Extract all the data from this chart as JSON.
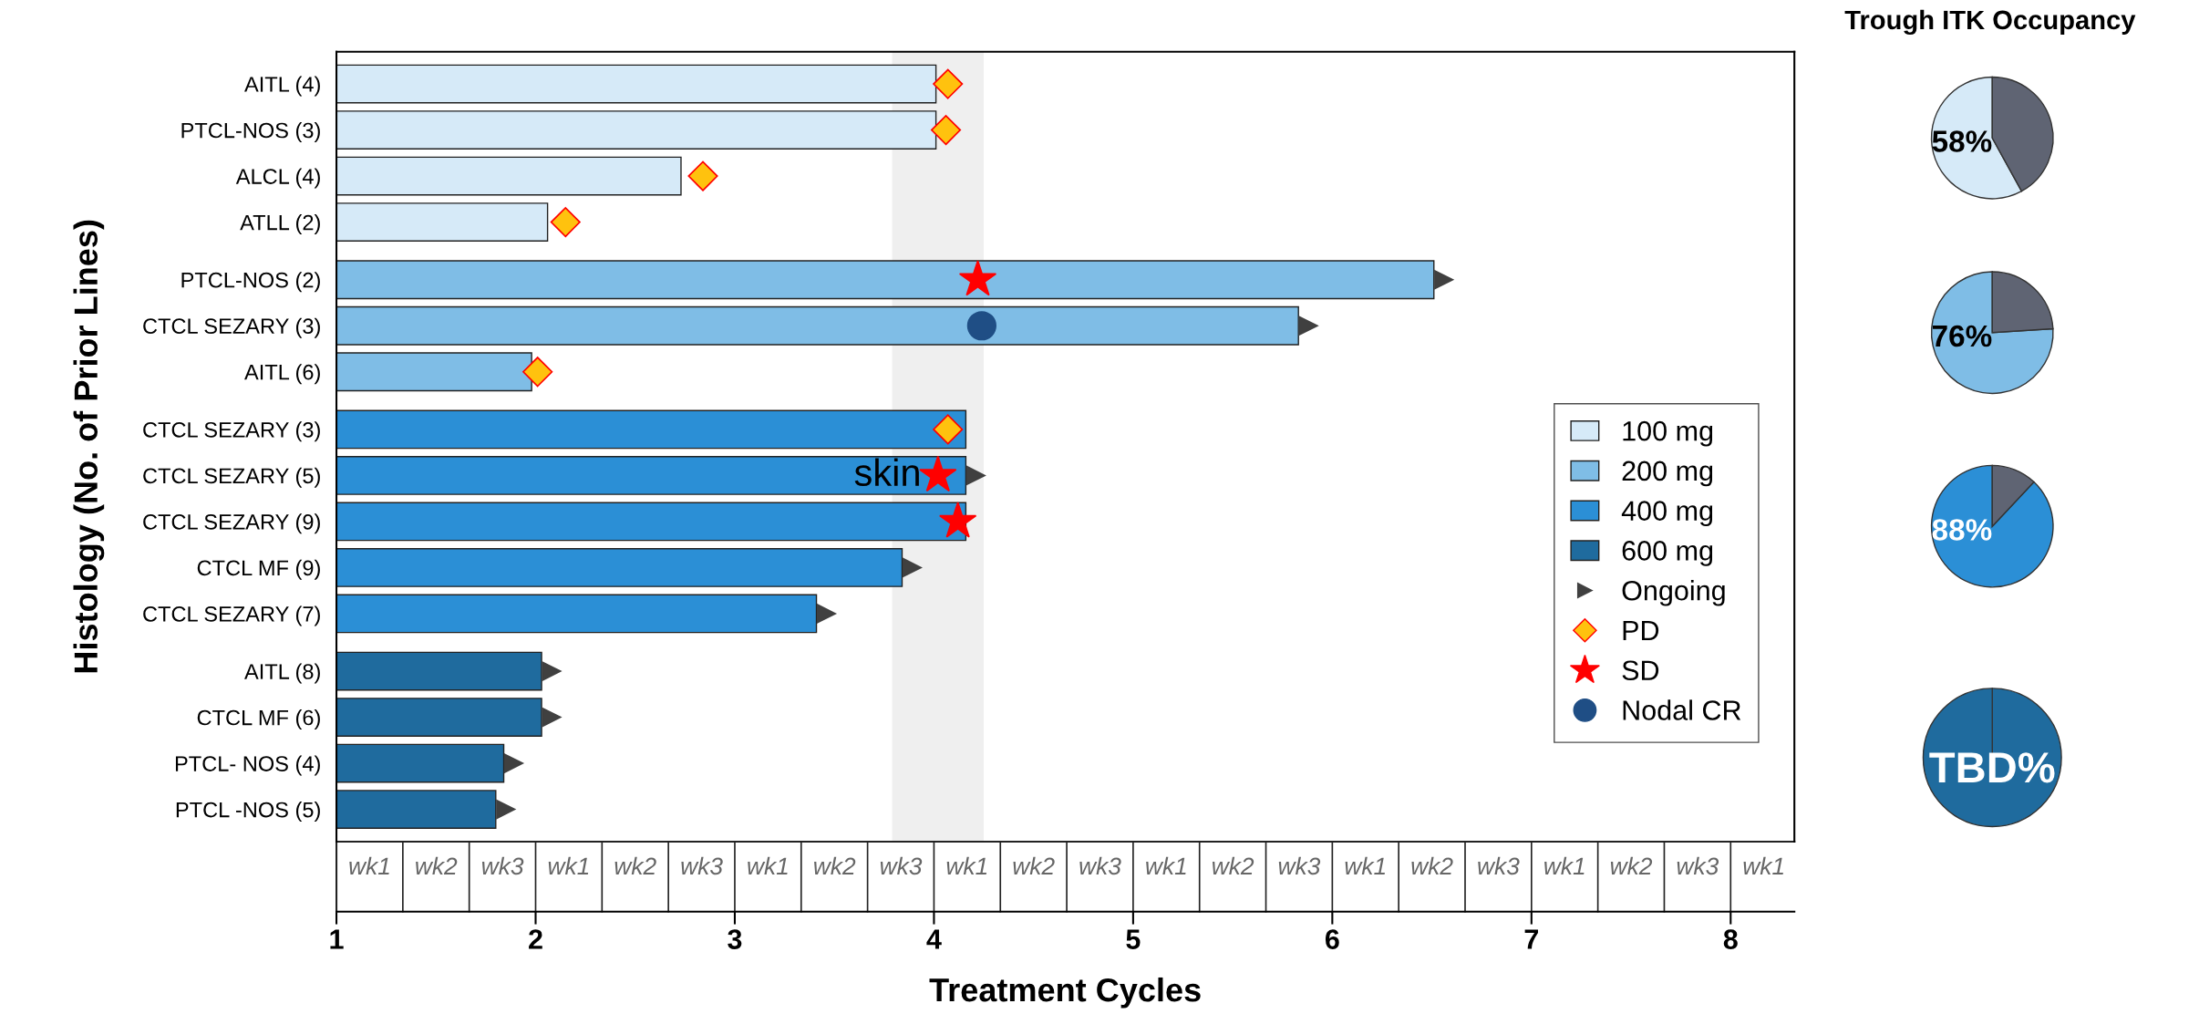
{
  "chart_data": [
    {
      "type": "bar",
      "orientation": "horizontal",
      "xlabel": "Treatment Cycles",
      "ylabel": "Histology (No. of Prior Lines)",
      "categories": [
        "AITL (4)",
        "PTCL-NOS (3)",
        "ALCL (4)",
        "ATLL (2)",
        "PTCL-NOS (2)",
        "CTCL SEZARY (3)",
        "AITL (6)",
        "CTCL SEZARY (3)",
        "CTCL SEZARY (5)",
        "CTCL SEZARY (9)",
        "CTCL MF (9)",
        "CTCL SEZARY (7)",
        "AITL (8)",
        "CTCL MF (6)",
        "PTCL- NOS (4)",
        "PTCL -NOS (5)"
      ],
      "series": [
        {
          "name": "100 mg",
          "color": "#d6eaf8",
          "values": [
            4.01,
            4.01,
            2.73,
            2.06,
            null,
            null,
            null,
            null,
            null,
            null,
            null,
            null,
            null,
            null,
            null,
            null
          ]
        },
        {
          "name": "200 mg",
          "color": "#7fbde6",
          "values": [
            null,
            null,
            null,
            null,
            6.51,
            5.83,
            1.98,
            null,
            null,
            null,
            null,
            null,
            null,
            null,
            null,
            null
          ]
        },
        {
          "name": "400 mg",
          "color": "#2b8fd6",
          "values": [
            null,
            null,
            null,
            null,
            null,
            null,
            null,
            4.16,
            4.16,
            4.16,
            3.84,
            3.41,
            null,
            null,
            null,
            null
          ]
        },
        {
          "name": "600 mg",
          "color": "#1f6b9e",
          "values": [
            null,
            null,
            null,
            null,
            null,
            null,
            null,
            null,
            null,
            null,
            null,
            null,
            2.03,
            2.03,
            1.84,
            1.8
          ]
        },
        {
          "name": "Ongoing",
          "type": "scatter",
          "marker": "triangle",
          "color": "#404040",
          "values": [
            null,
            null,
            null,
            null,
            6.56,
            5.88,
            null,
            null,
            4.21,
            null,
            3.89,
            3.46,
            2.08,
            2.08,
            1.89,
            1.85
          ]
        },
        {
          "name": "PD",
          "type": "scatter",
          "marker": "diamond",
          "color": "#ffc20e",
          "values": [
            4.07,
            4.06,
            2.84,
            2.15,
            null,
            null,
            2.01,
            4.07,
            null,
            null,
            null,
            null,
            null,
            null,
            null,
            null
          ]
        },
        {
          "name": "SD",
          "type": "scatter",
          "marker": "star",
          "color": "#ff0000",
          "values": [
            null,
            null,
            null,
            null,
            4.22,
            null,
            null,
            null,
            4.02,
            4.12,
            null,
            null,
            null,
            null,
            null,
            null
          ]
        },
        {
          "name": "Nodal CR",
          "type": "scatter",
          "marker": "circle",
          "color": "#1f4e85",
          "values": [
            null,
            null,
            null,
            null,
            null,
            4.24,
            null,
            null,
            null,
            null,
            null,
            null,
            null,
            null,
            null,
            null
          ]
        }
      ],
      "annotations": [
        "skin",
        "wk1",
        "wk2",
        "wk3",
        "wk1",
        "wk2",
        "wk3",
        "wk1",
        "wk2",
        "wk3",
        "wk1",
        "wk2",
        "wk3",
        "wk1",
        "wk2",
        "wk3",
        "wk1",
        "wk2",
        "wk3",
        "wk1",
        "wk2",
        "wk3",
        "wk1"
      ],
      "bands": [
        {
          "axis": "x",
          "from": 3.79,
          "to": 4.25,
          "color": "#efefef"
        }
      ],
      "xlim": [
        1,
        8.32
      ],
      "xticks": [
        1,
        2,
        3,
        4,
        5,
        6,
        7,
        8
      ],
      "legend": "right"
    },
    {
      "type": "pie",
      "title": "Trough ITK Occupancy",
      "categories": [
        null,
        null
      ],
      "values": [
        58,
        42
      ],
      "colors": [
        "#d6eaf8",
        "#5f6473"
      ],
      "value_labels": [
        "58%",
        null
      ]
    },
    {
      "type": "pie",
      "categories": [
        null,
        null
      ],
      "values": [
        76,
        24
      ],
      "colors": [
        "#7fbde6",
        "#5f6473"
      ],
      "value_labels": [
        "76%",
        null
      ]
    },
    {
      "type": "pie",
      "categories": [
        null,
        null
      ],
      "values": [
        88,
        12
      ],
      "colors": [
        "#2b8fd6",
        "#5f6473"
      ],
      "value_labels": [
        "88%",
        null
      ]
    },
    {
      "type": "other",
      "colors": [
        "#1f6b9e"
      ],
      "annotations": [
        "TBD%"
      ]
    }
  ]
}
